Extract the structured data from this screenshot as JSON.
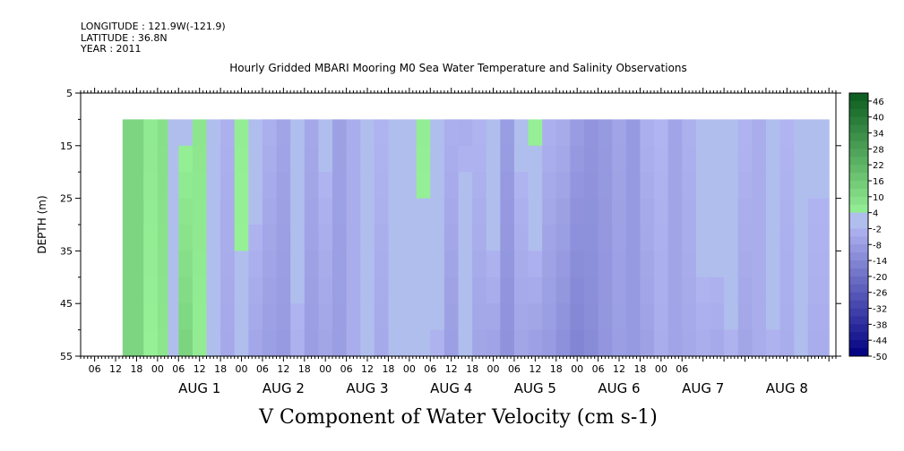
{
  "header": {
    "longitude": "LONGITUDE : 121.9W(-121.9)",
    "latitude": "LATITUDE : 36.8N",
    "year": "YEAR : 2011"
  },
  "chart_data": {
    "type": "heatmap",
    "title": "Hourly Gridded MBARI Mooring M0 Sea Water Temperature and Salinity Observations",
    "xlabel": "V Component of Water Velocity (cm s-1)",
    "ylabel": "DEPTH (m)",
    "y_range": [
      5,
      55
    ],
    "y_inverted": true,
    "y_ticks": [
      5,
      15,
      25,
      35,
      45,
      55
    ],
    "data_depth_range": [
      10,
      55
    ],
    "x_hour_ticks": [
      "06",
      "12",
      "18",
      "00",
      "06",
      "12",
      "18",
      "00",
      "06",
      "12",
      "18",
      "00",
      "06",
      "12",
      "18",
      "00",
      "06",
      "12",
      "18",
      "00",
      "06",
      "12",
      "18",
      "00",
      "06",
      "12",
      "18",
      "00",
      "06"
    ],
    "x_day_labels": [
      "AUG 1",
      "AUG 2",
      "AUG 3",
      "AUG 4",
      "AUG 5",
      "AUG 6",
      "AUG 7",
      "AUG 8"
    ],
    "data_start": "Jul 31 14:00",
    "data_end": "Aug 8 08:00",
    "colorbar_labels": [
      "46",
      "40",
      "34",
      "28",
      "22",
      "16",
      "10",
      "4",
      "-2",
      "-8",
      "-14",
      "-20",
      "-26",
      "-32",
      "-38",
      "-44",
      "-50"
    ],
    "colorbar_levels": [
      -50,
      -47,
      -44,
      -41,
      -38,
      -35,
      -32,
      -29,
      -26,
      -23,
      -20,
      -17,
      -14,
      -11,
      -8,
      -5,
      -2,
      1,
      4,
      7,
      10,
      13,
      16,
      19,
      22,
      25,
      28,
      31,
      34,
      37,
      40,
      43,
      46,
      49
    ],
    "profile_hours": [
      14,
      20,
      24,
      27,
      30,
      34,
      38,
      42,
      46,
      50,
      54,
      58,
      62,
      66,
      70,
      74,
      78,
      82,
      86,
      90,
      94,
      98,
      102,
      106,
      110,
      114,
      118,
      122,
      126,
      130,
      134,
      138,
      142,
      146,
      150,
      154,
      158,
      162,
      166,
      170,
      174,
      178,
      182,
      186,
      190,
      194,
      198,
      202,
      206,
      210,
      216
    ],
    "profile_values_surface": [
      12,
      6,
      9,
      -1,
      3,
      7,
      3,
      -3,
      5,
      1,
      -3,
      -6,
      2,
      -5,
      -1,
      -7,
      -4,
      2,
      -2,
      4,
      -1,
      5,
      3,
      -3,
      -4,
      -2,
      4,
      -8,
      -1,
      5,
      -3,
      -4,
      -8,
      -10,
      -9,
      -6,
      -9,
      -3,
      -2,
      -6,
      -3,
      2,
      3,
      4,
      -2,
      -4,
      4,
      -2,
      2,
      -1,
      0
    ],
    "profile_values_bottom": [
      12,
      4,
      7,
      2,
      13,
      5,
      2,
      -5,
      3,
      -6,
      -8,
      -9,
      -3,
      -8,
      -6,
      -8,
      -4,
      1,
      -5,
      -2,
      3,
      2,
      -3,
      -8,
      4,
      -6,
      -7,
      -11,
      -6,
      -8,
      -9,
      -12,
      -15,
      -13,
      -10,
      -8,
      -9,
      -7,
      -4,
      -6,
      -5,
      -4,
      -5,
      -3,
      -6,
      -4,
      -3,
      -4,
      1,
      -4,
      0
    ]
  }
}
